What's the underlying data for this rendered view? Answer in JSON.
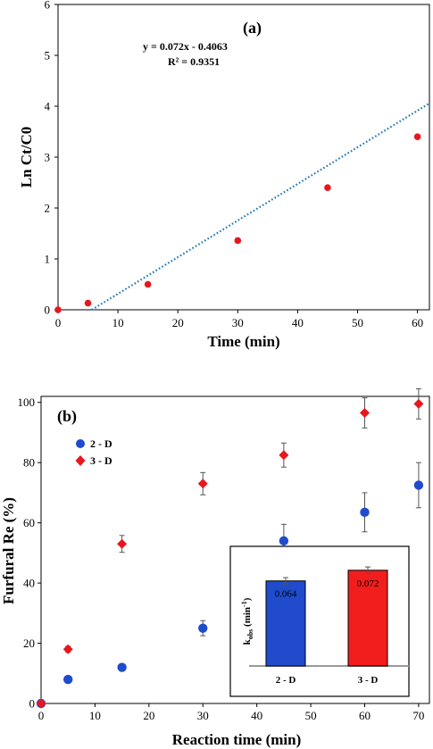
{
  "chart_data": [
    {
      "type": "scatter",
      "panel_label": "(a)",
      "xlabel": "Time (min)",
      "ylabel": "Ln Ct/C0",
      "xlim": [
        0,
        62
      ],
      "ylim": [
        0,
        6
      ],
      "xticks": [
        "0",
        "10",
        "20",
        "30",
        "40",
        "50",
        "60"
      ],
      "yticks": [
        "0",
        "1",
        "2",
        "3",
        "4",
        "5",
        "6"
      ],
      "points": [
        {
          "x": 0,
          "y": 0
        },
        {
          "x": 5,
          "y": 0.13
        },
        {
          "x": 15,
          "y": 0.5
        },
        {
          "x": 30,
          "y": 1.36
        },
        {
          "x": 45,
          "y": 2.4
        },
        {
          "x": 60,
          "y": 3.4
        }
      ],
      "marker_color": "#e8171e",
      "trendline": {
        "slope": 0.072,
        "intercept": -0.4063,
        "color": "#1f78b4",
        "style": "dotted"
      },
      "equation": "y = 0.072x - 0.4063",
      "r_squared": "R² = 0.9351"
    },
    {
      "type": "scatter",
      "panel_label": "(b)",
      "xlabel": "Reaction time (min)",
      "ylabel": "Furfural Re (%)",
      "xlim": [
        0,
        72
      ],
      "ylim": [
        0,
        102
      ],
      "xticks": [
        "0",
        "10",
        "20",
        "30",
        "40",
        "50",
        "60",
        "70"
      ],
      "yticks": [
        "0",
        "20",
        "40",
        "60",
        "80",
        "100"
      ],
      "series": [
        {
          "name": "2 - D",
          "color": "#1f4bcc",
          "marker": "circle",
          "points": [
            {
              "x": 0,
              "y": 0,
              "err": 0
            },
            {
              "x": 5,
              "y": 8,
              "err": 0.5
            },
            {
              "x": 15,
              "y": 12,
              "err": 1
            },
            {
              "x": 30,
              "y": 25,
              "err": 2.5
            },
            {
              "x": 45,
              "y": 54,
              "err": 5.5
            },
            {
              "x": 60,
              "y": 63.5,
              "err": 6.5
            },
            {
              "x": 70,
              "y": 72.5,
              "err": 7.5
            }
          ]
        },
        {
          "name": "3 - D",
          "color": "#e8171e",
          "marker": "diamond",
          "points": [
            {
              "x": 0,
              "y": 0,
              "err": 0
            },
            {
              "x": 5,
              "y": 18,
              "err": 1
            },
            {
              "x": 15,
              "y": 53,
              "err": 2.8
            },
            {
              "x": 30,
              "y": 73,
              "err": 3.7
            },
            {
              "x": 45,
              "y": 82.5,
              "err": 4
            },
            {
              "x": 60,
              "y": 96.5,
              "err": 5
            },
            {
              "x": 70,
              "y": 99.5,
              "err": 5
            }
          ]
        }
      ],
      "inset": {
        "type": "bar",
        "ylabel_main": "k",
        "ylabel_sub": "obs",
        "ylabel_unit": " (min",
        "ylabel_exp": "-1",
        "ylabel_close": ")",
        "categories": [
          "2 - D",
          "3 - D"
        ],
        "values": [
          0.064,
          0.072
        ],
        "value_labels": [
          "0.064",
          "0.072"
        ],
        "errors": [
          0.0025,
          0.0025
        ],
        "colors": [
          "#1f4bcc",
          "#f21d1d"
        ],
        "ylim": [
          0,
          0.09
        ]
      }
    }
  ]
}
